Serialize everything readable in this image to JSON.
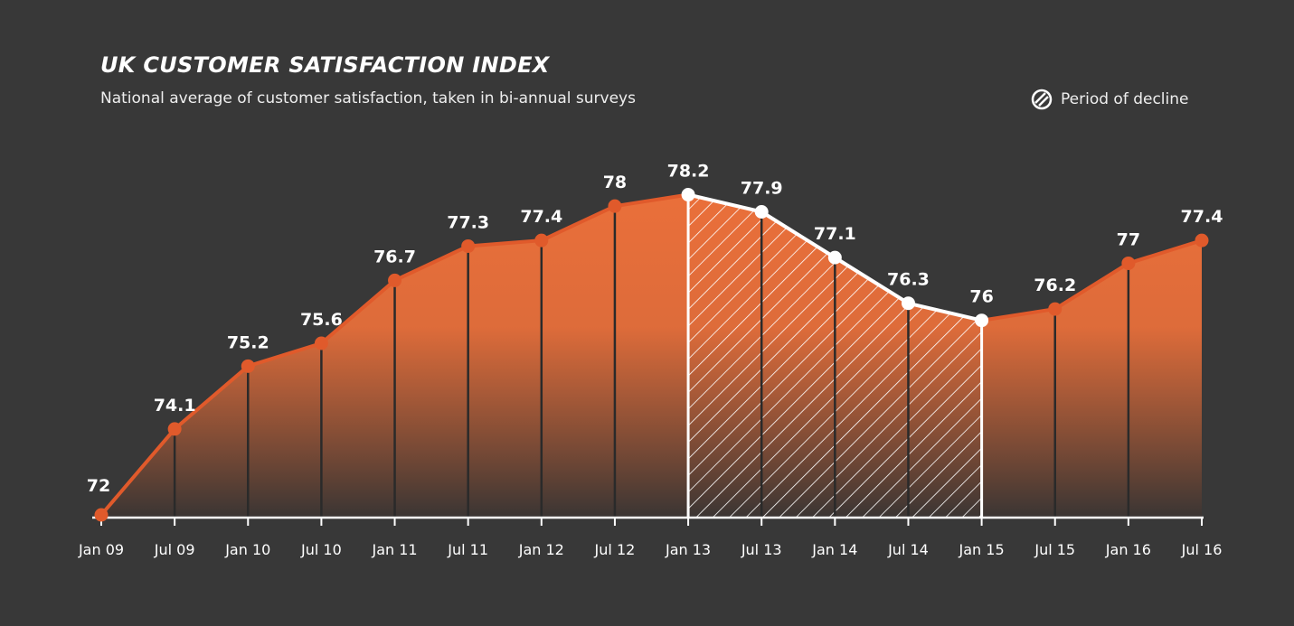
{
  "chart_data": {
    "type": "area",
    "title": "UK CUSTOMER SATISFACTION INDEX",
    "subtitle": "National average of customer satisfaction, taken in bi-annual surveys",
    "xlabel": "",
    "ylabel": "",
    "categories": [
      "Jan 09",
      "Jul 09",
      "Jan 10",
      "Jul 10",
      "Jan 11",
      "Jul 11",
      "Jan 12",
      "Jul 12",
      "Jan 13",
      "Jul 13",
      "Jan 14",
      "Jul 14",
      "Jan 15",
      "Jul 15",
      "Jan 16",
      "Jul 16"
    ],
    "values": [
      72,
      74.1,
      75.2,
      75.6,
      76.7,
      77.3,
      77.4,
      78,
      78.2,
      77.9,
      77.1,
      76.3,
      76,
      76.2,
      77,
      77.4
    ],
    "ylim": [
      72.55,
      80.5
    ],
    "grid": false,
    "legend": {
      "label": "Period of decline",
      "position": "top-right"
    },
    "decline_period": {
      "start": "Jan 13",
      "end": "Jan 15"
    },
    "colors": {
      "background": "#383838",
      "line": "#e05a2b",
      "fill_top": "#ec703a",
      "fill_bottom": "#3a3533",
      "decline": "#ffffff"
    }
  }
}
